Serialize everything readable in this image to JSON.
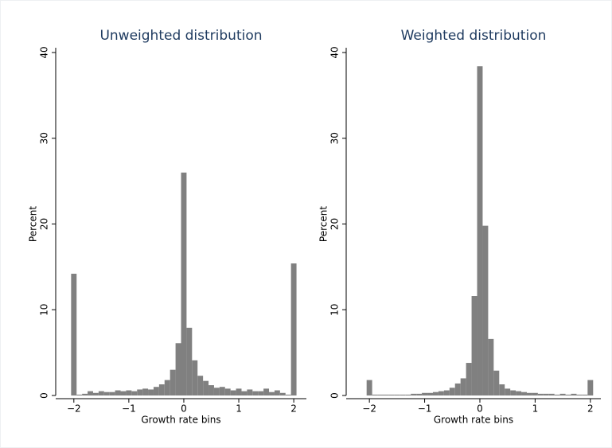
{
  "chart_data": [
    {
      "type": "histogram",
      "title": "Unweighted distribution",
      "x_label": "Growth rate bins",
      "y_label": "Percent",
      "color": "#808080",
      "bins": [
        -2.05,
        -1.95,
        -1.85,
        -1.75,
        -1.65,
        -1.55,
        -1.45,
        -1.35,
        -1.25,
        -1.15,
        -1.05,
        -0.95,
        -0.85,
        -0.75,
        -0.65,
        -0.55,
        -0.45,
        -0.35,
        -0.25,
        -0.15,
        -0.05,
        0.05,
        0.15,
        0.25,
        0.35,
        0.45,
        0.55,
        0.65,
        0.75,
        0.85,
        0.95,
        1.05,
        1.15,
        1.25,
        1.35,
        1.45,
        1.55,
        1.65,
        1.75,
        1.85,
        1.95,
        2.05
      ],
      "values": [
        14.2,
        0.1,
        0.2,
        0.5,
        0.3,
        0.5,
        0.4,
        0.4,
        0.6,
        0.5,
        0.6,
        0.5,
        0.7,
        0.8,
        0.7,
        1.0,
        1.3,
        1.8,
        3.0,
        6.1,
        26.0,
        7.9,
        4.1,
        2.3,
        1.7,
        1.2,
        0.9,
        1.0,
        0.8,
        0.6,
        0.8,
        0.5,
        0.7,
        0.5,
        0.5,
        0.8,
        0.4,
        0.6,
        0.3,
        0.1,
        15.4
      ],
      "xlim": [
        -2.33,
        2.23
      ],
      "ylim": [
        0,
        40
      ],
      "xticks": [
        {
          "value": -2,
          "label": "−2"
        },
        {
          "value": -1,
          "label": "−1"
        },
        0,
        1,
        2
      ],
      "yticks": [
        0,
        10,
        20,
        30,
        40
      ]
    },
    {
      "type": "histogram",
      "title": "Weighted distribution",
      "x_label": "Growth rate bins",
      "y_label": "Percent",
      "color": "#808080",
      "bins": [
        -2.05,
        -1.95,
        -1.85,
        -1.75,
        -1.65,
        -1.55,
        -1.45,
        -1.35,
        -1.25,
        -1.15,
        -1.05,
        -0.95,
        -0.85,
        -0.75,
        -0.65,
        -0.55,
        -0.45,
        -0.35,
        -0.25,
        -0.15,
        -0.05,
        0.05,
        0.15,
        0.25,
        0.35,
        0.45,
        0.55,
        0.65,
        0.75,
        0.85,
        0.95,
        1.05,
        1.15,
        1.25,
        1.35,
        1.45,
        1.55,
        1.65,
        1.75,
        1.85,
        1.95,
        2.05
      ],
      "values": [
        1.8,
        0.1,
        0.1,
        0.1,
        0.1,
        0.1,
        0.1,
        0.1,
        0.2,
        0.2,
        0.3,
        0.3,
        0.4,
        0.5,
        0.6,
        0.9,
        1.4,
        2.0,
        3.8,
        11.6,
        38.4,
        19.8,
        6.6,
        2.9,
        1.3,
        0.8,
        0.6,
        0.5,
        0.4,
        0.3,
        0.3,
        0.2,
        0.2,
        0.2,
        0.1,
        0.2,
        0.1,
        0.2,
        0.1,
        0.1,
        1.8
      ],
      "xlim": [
        -2.42,
        2.19
      ],
      "ylim": [
        0,
        40
      ],
      "xticks": [
        {
          "value": -2,
          "label": "−2"
        },
        {
          "value": -1,
          "label": "−1"
        },
        0,
        1,
        2
      ],
      "yticks": [
        0,
        10,
        20,
        30,
        40
      ]
    }
  ]
}
